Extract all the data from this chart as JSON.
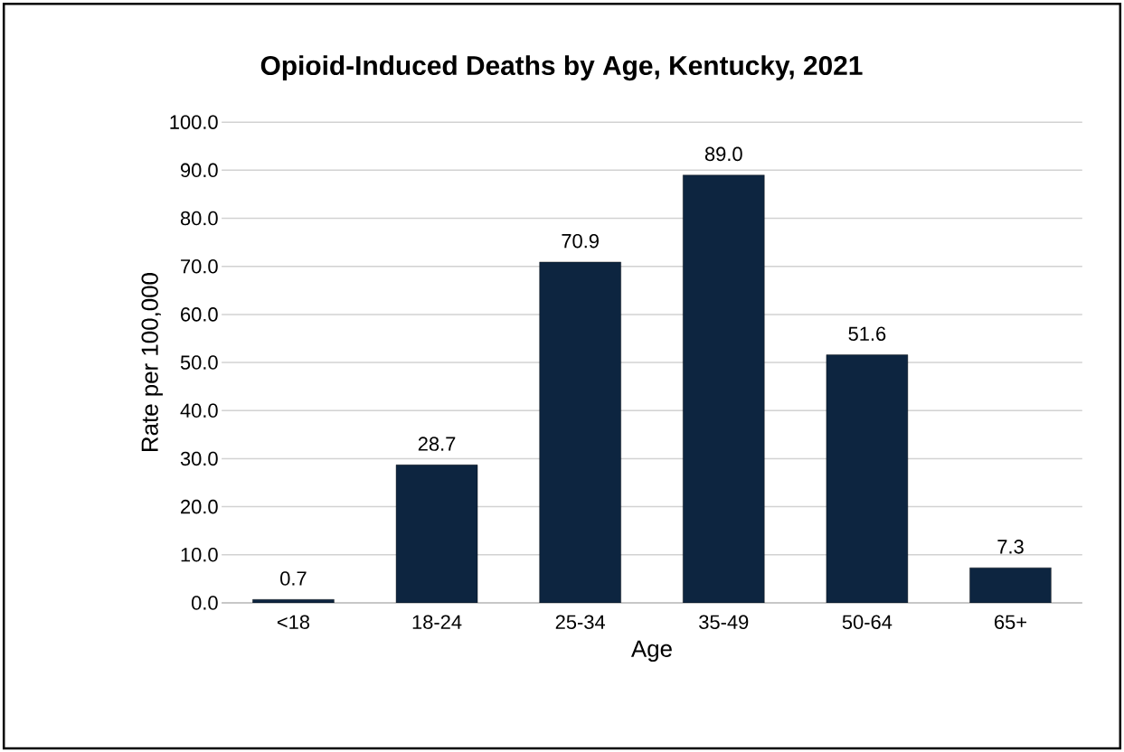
{
  "chart_data": {
    "type": "bar",
    "title": "Opioid-Induced Deaths by Age, Kentucky, 2021",
    "xlabel": "Age",
    "ylabel": "Rate per 100,000",
    "categories": [
      "<18",
      "18-24",
      "25-34",
      "35-49",
      "50-64",
      "65+"
    ],
    "values": [
      0.7,
      28.7,
      70.9,
      89.0,
      51.6,
      7.3
    ],
    "value_labels": [
      "0.7",
      "28.7",
      "70.9",
      "89.0",
      "51.6",
      "7.3"
    ],
    "color": "#0d2540",
    "ylim": [
      0,
      100
    ],
    "yticks": [
      {
        "value": 0,
        "label": "0.0"
      },
      {
        "value": 10,
        "label": "10.0"
      },
      {
        "value": 20,
        "label": "20.0"
      },
      {
        "value": 30,
        "label": "30.0"
      },
      {
        "value": 40,
        "label": "40.0"
      },
      {
        "value": 50,
        "label": "50.0"
      },
      {
        "value": 60,
        "label": "60.0"
      },
      {
        "value": 70,
        "label": "70.0"
      },
      {
        "value": 80,
        "label": "80.0"
      },
      {
        "value": 90,
        "label": "90.0"
      },
      {
        "value": 100,
        "label": "100.0"
      }
    ],
    "grid": "y"
  }
}
